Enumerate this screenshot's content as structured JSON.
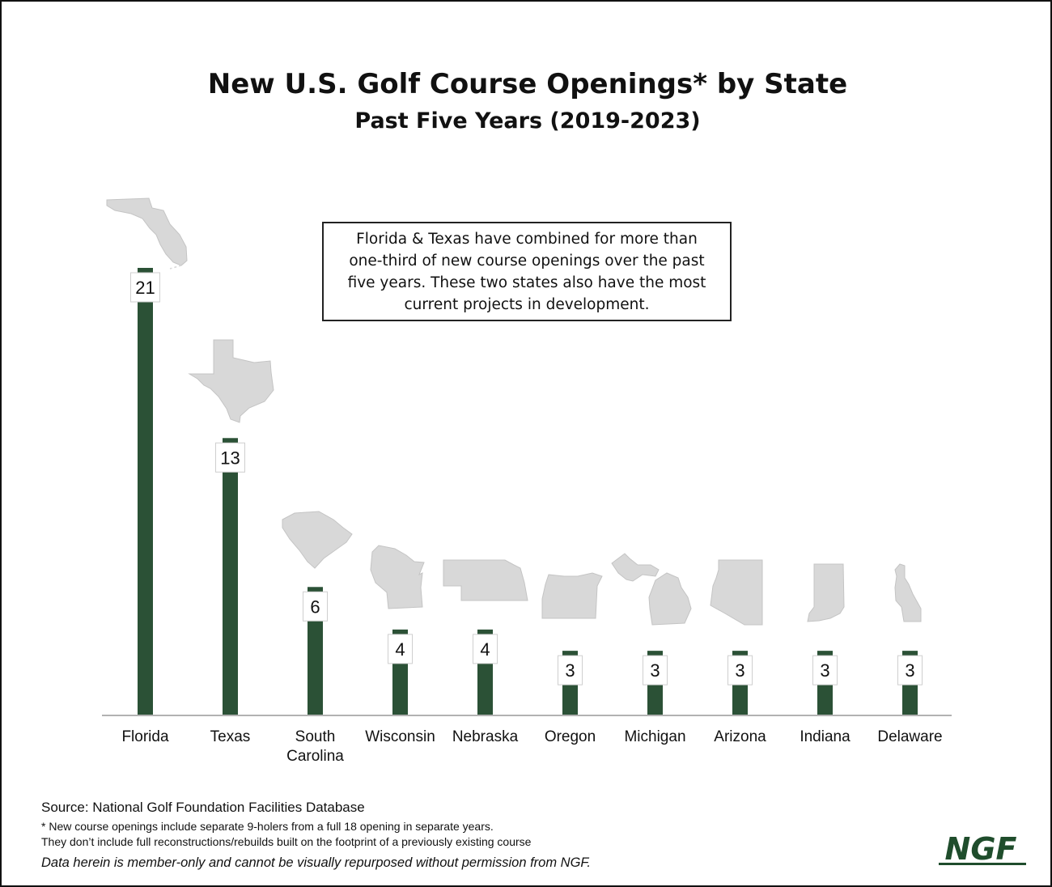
{
  "title": "New U.S. Golf Course Openings* by State",
  "subtitle": "Past Five Years (2019-2023)",
  "callout": "Florida & Texas have combined for more than one-third of new course openings over the past five years. These two states also have the most current projects in development.",
  "colors": {
    "bar": "#2b5136",
    "state_shape": "#d8d8d8",
    "axis": "#999999",
    "logo": "#1f4d2c"
  },
  "icons": [
    "florida-shape-icon",
    "texas-shape-icon",
    "south-carolina-shape-icon",
    "wisconsin-shape-icon",
    "nebraska-shape-icon",
    "oregon-shape-icon",
    "michigan-shape-icon",
    "arizona-shape-icon",
    "indiana-shape-icon",
    "delaware-shape-icon"
  ],
  "chart_data": {
    "type": "bar",
    "categories": [
      "Florida",
      "Texas",
      "South Carolina",
      "Wisconsin",
      "Nebraska",
      "Oregon",
      "Michigan",
      "Arizona",
      "Indiana",
      "Delaware"
    ],
    "category_lines": [
      [
        "Florida"
      ],
      [
        "Texas"
      ],
      [
        "South",
        "Carolina"
      ],
      [
        "Wisconsin"
      ],
      [
        "Nebraska"
      ],
      [
        "Oregon"
      ],
      [
        "Michigan"
      ],
      [
        "Arizona"
      ],
      [
        "Indiana"
      ],
      [
        "Delaware"
      ]
    ],
    "values": [
      21,
      13,
      6,
      4,
      4,
      3,
      3,
      3,
      3,
      3
    ],
    "ylim": [
      0,
      21
    ],
    "grid": false,
    "legend": "none"
  },
  "footer": {
    "source": "Source: National Golf Foundation Facilities Database",
    "note1": "* New course openings include separate 9-holers from a full 18 opening in separate years.",
    "note2": "They don’t include full reconstructions/rebuilds built on the footprint of a previously existing course",
    "disclaimer": "Data herein is member-only and cannot be visually repurposed without permission from NGF."
  },
  "logo_text": "NGF"
}
